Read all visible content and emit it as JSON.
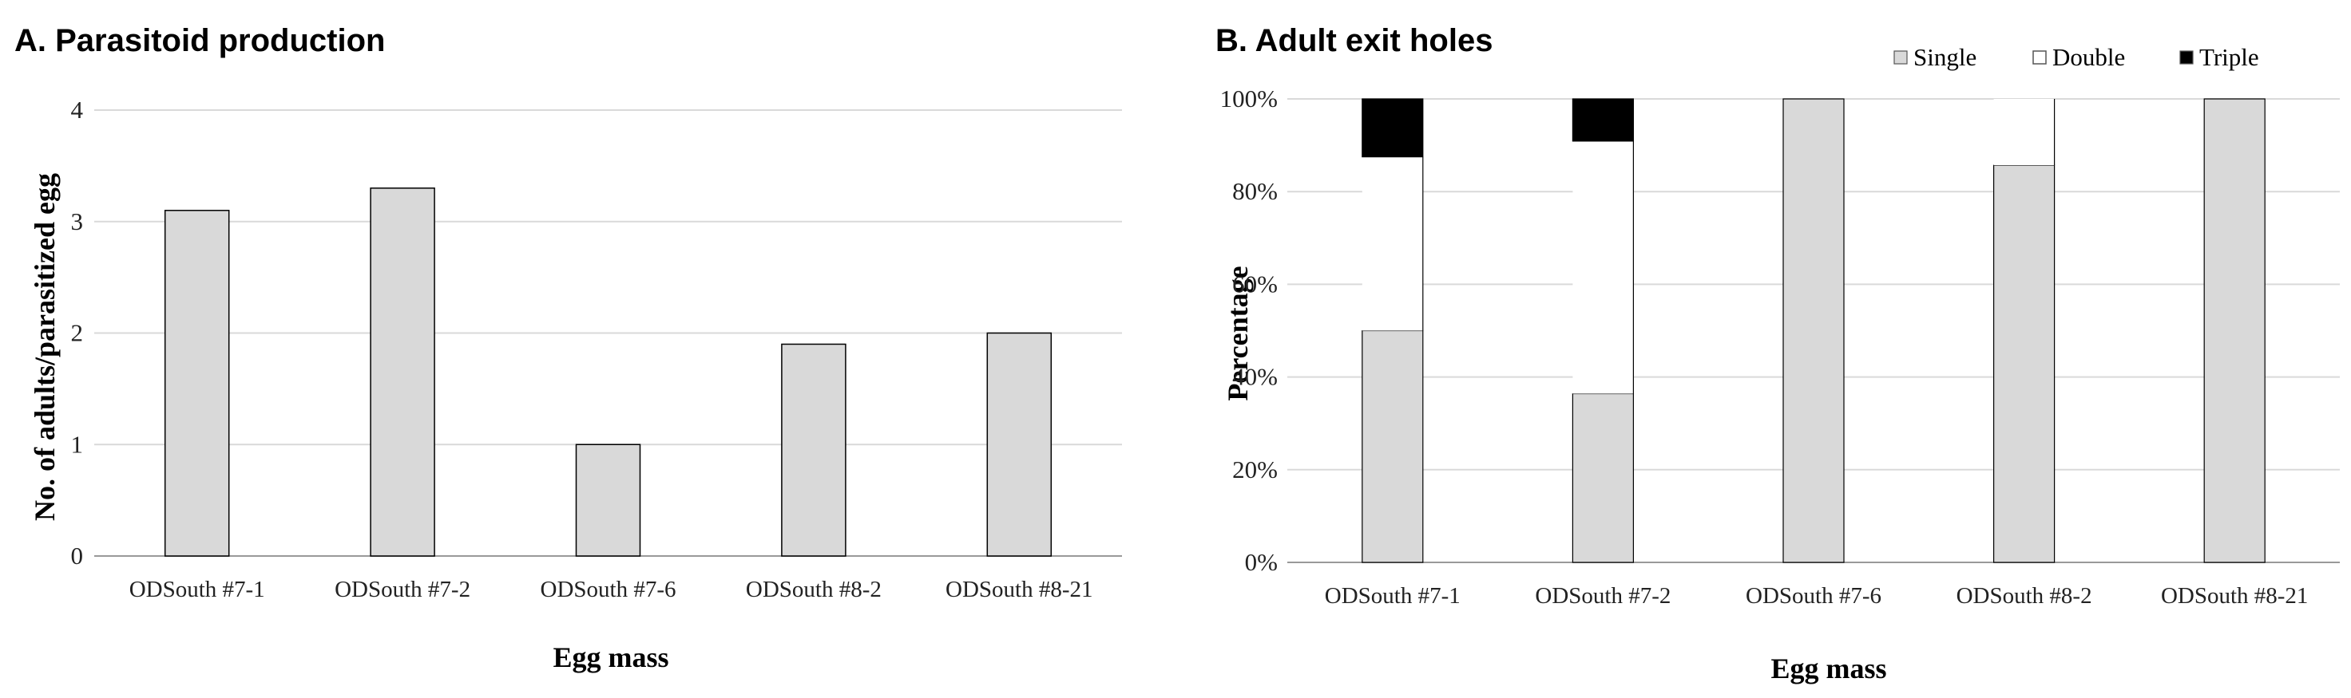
{
  "chart_data": [
    {
      "type": "bar",
      "title": "A.  Parasitoid production",
      "xlabel": "Egg mass",
      "ylabel": "No. of adults/parasitized egg",
      "ylim": [
        0,
        4
      ],
      "yticks": [
        "0",
        "1",
        "2",
        "3",
        "4"
      ],
      "categories": [
        "ODSouth #7-1",
        "ODSouth #7-2",
        "ODSouth #7-6",
        "ODSouth #8-2",
        "ODSouth #8-21"
      ],
      "values": [
        3.1,
        3.3,
        1.0,
        1.9,
        2.0
      ],
      "grid": true,
      "colors": {
        "bar": "#d9d9d9",
        "stroke": "#000000"
      }
    },
    {
      "type": "stacked-bar-100",
      "title": "B.  Adult exit holes",
      "xlabel": "Egg mass",
      "ylabel": "Percentage",
      "ylim": [
        0,
        100
      ],
      "yticks": [
        "0%",
        "20%",
        "40%",
        "60%",
        "80%",
        "100%"
      ],
      "categories": [
        "ODSouth #7-1",
        "ODSouth #7-2",
        "ODSouth #7-6",
        "ODSouth #8-2",
        "ODSouth #8-21"
      ],
      "series": [
        {
          "name": "Single",
          "color": "#d9d9d9",
          "values": [
            50,
            36.4,
            100,
            85.7,
            100
          ]
        },
        {
          "name": "Double",
          "color": "#ffffff",
          "values": [
            37.5,
            54.5,
            0,
            14.3,
            0
          ]
        },
        {
          "name": "Triple",
          "color": "#000000",
          "values": [
            12.5,
            9.1,
            0,
            0,
            0
          ]
        }
      ],
      "legend": {
        "position": "top-right",
        "entries": [
          {
            "marker": "■",
            "color": "#d9d9d9",
            "label": "Single"
          },
          {
            "marker": "□",
            "color": "#000000",
            "label": "Double"
          },
          {
            "marker": "■",
            "color": "#000000",
            "label": "Triple"
          }
        ]
      },
      "grid": true
    }
  ]
}
